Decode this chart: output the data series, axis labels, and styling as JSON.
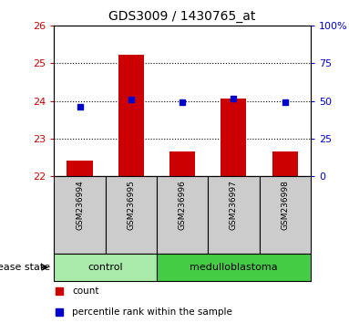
{
  "title": "GDS3009 / 1430765_at",
  "samples": [
    "GSM236994",
    "GSM236995",
    "GSM236996",
    "GSM236997",
    "GSM236998"
  ],
  "red_values": [
    22.4,
    25.22,
    22.65,
    24.07,
    22.65
  ],
  "blue_values": [
    23.85,
    24.05,
    23.97,
    24.06,
    23.97
  ],
  "ylim_left": [
    22,
    26
  ],
  "ylim_right": [
    0,
    100
  ],
  "yticks_left": [
    22,
    23,
    24,
    25,
    26
  ],
  "yticks_right": [
    0,
    25,
    50,
    75,
    100
  ],
  "ytick_right_labels": [
    "0",
    "25",
    "50",
    "75",
    "100%"
  ],
  "bar_color": "#cc0000",
  "dot_color": "#0000cc",
  "bar_width": 0.5,
  "control_indices": [
    0,
    1
  ],
  "medulloblastoma_indices": [
    2,
    3,
    4
  ],
  "control_color": "#aaeaaa",
  "medulloblastoma_color": "#44cc44",
  "sample_box_color": "#cccccc",
  "group_label": "disease state",
  "legend_items": [
    {
      "label": "count",
      "color": "#cc0000"
    },
    {
      "label": "percentile rank within the sample",
      "color": "#0000cc"
    }
  ],
  "background_color": "#ffffff",
  "tick_label_color_left": "#cc0000",
  "tick_label_color_right": "#0000cc",
  "base_value": 22,
  "hline_ticks": [
    23,
    24,
    25
  ]
}
